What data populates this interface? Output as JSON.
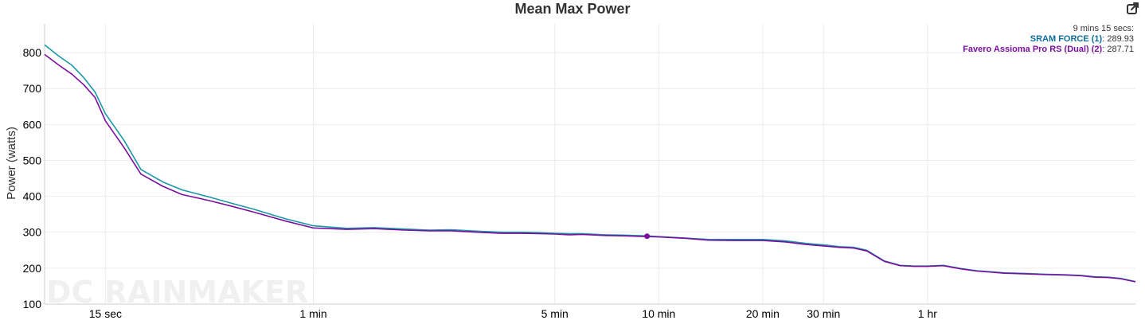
{
  "chart_data": {
    "type": "line",
    "title": "Mean Max Power",
    "ylabel": "Power (watts)",
    "xlabel": "",
    "x_scale": "log",
    "x_unit": "seconds",
    "xlim": [
      10,
      14400
    ],
    "ylim": [
      100,
      880
    ],
    "yticks": [
      100,
      200,
      300,
      400,
      500,
      600,
      700,
      800
    ],
    "xticks": [
      {
        "value": 15,
        "label": "15 sec"
      },
      {
        "value": 60,
        "label": "1 min"
      },
      {
        "value": 300,
        "label": "5 min"
      },
      {
        "value": 600,
        "label": "10 min"
      },
      {
        "value": 1200,
        "label": "20 min"
      },
      {
        "value": 1800,
        "label": "30 min"
      },
      {
        "value": 3600,
        "label": "1 hr"
      }
    ],
    "grid": true,
    "watermark": "DC RAINMAKER",
    "tooltip": {
      "header": "9 mins 15 secs:",
      "rows": [
        {
          "name": "SRAM FORCE (1)",
          "value": "289.93",
          "color": "#0d6e9c"
        },
        {
          "name": "Favero Assioma Pro RS (Dual) (2)",
          "value": "287.71",
          "color": "#7a109e"
        }
      ],
      "marker_x": 555,
      "marker_y": 289
    },
    "series": [
      {
        "name": "SRAM FORCE (1)",
        "color": "#1b97a6",
        "x": [
          10,
          11,
          12,
          13,
          14,
          15,
          17,
          19,
          22,
          25,
          30,
          35,
          40,
          50,
          60,
          75,
          90,
          110,
          130,
          150,
          180,
          210,
          240,
          270,
          300,
          330,
          360,
          420,
          480,
          555,
          600,
          720,
          840,
          1000,
          1200,
          1400,
          1600,
          1800,
          2000,
          2200,
          2400,
          2700,
          3000,
          3300,
          3600,
          4000,
          4500,
          5000,
          5500,
          6000,
          7000,
          8000,
          9000,
          10000,
          11000,
          12000,
          13000,
          14400
        ],
        "y": [
          822,
          790,
          765,
          730,
          690,
          630,
          555,
          475,
          440,
          418,
          398,
          380,
          365,
          337,
          318,
          311,
          313,
          309,
          306,
          307,
          303,
          300,
          300,
          299,
          297,
          296,
          296,
          293,
          292,
          290,
          288,
          284,
          280,
          280,
          280,
          276,
          269,
          265,
          260,
          258,
          250,
          220,
          208,
          206,
          206,
          208,
          199,
          193,
          190,
          187,
          185,
          183,
          182,
          180,
          176,
          175,
          172,
          163
        ]
      },
      {
        "name": "Favero Assioma Pro RS (Dual) (2)",
        "color": "#7a109e",
        "x": [
          10,
          11,
          12,
          13,
          14,
          15,
          17,
          19,
          22,
          25,
          30,
          35,
          40,
          50,
          60,
          75,
          90,
          110,
          130,
          150,
          180,
          210,
          240,
          270,
          300,
          330,
          360,
          420,
          480,
          555,
          600,
          720,
          840,
          1000,
          1200,
          1400,
          1600,
          1800,
          2000,
          2200,
          2400,
          2700,
          3000,
          3300,
          3600,
          4000,
          4500,
          5000,
          5500,
          6000,
          7000,
          8000,
          9000,
          10000,
          11000,
          12000,
          13000,
          14400
        ],
        "y": [
          795,
          765,
          740,
          710,
          675,
          610,
          535,
          462,
          428,
          405,
          388,
          372,
          357,
          331,
          312,
          308,
          310,
          306,
          304,
          304,
          300,
          297,
          297,
          296,
          295,
          293,
          294,
          291,
          290,
          288,
          287,
          283,
          278,
          277,
          277,
          273,
          266,
          262,
          258,
          256,
          248,
          219,
          207,
          205,
          205,
          207,
          198,
          192,
          189,
          186,
          184,
          182,
          181,
          179,
          175,
          174,
          171,
          162
        ]
      }
    ]
  }
}
